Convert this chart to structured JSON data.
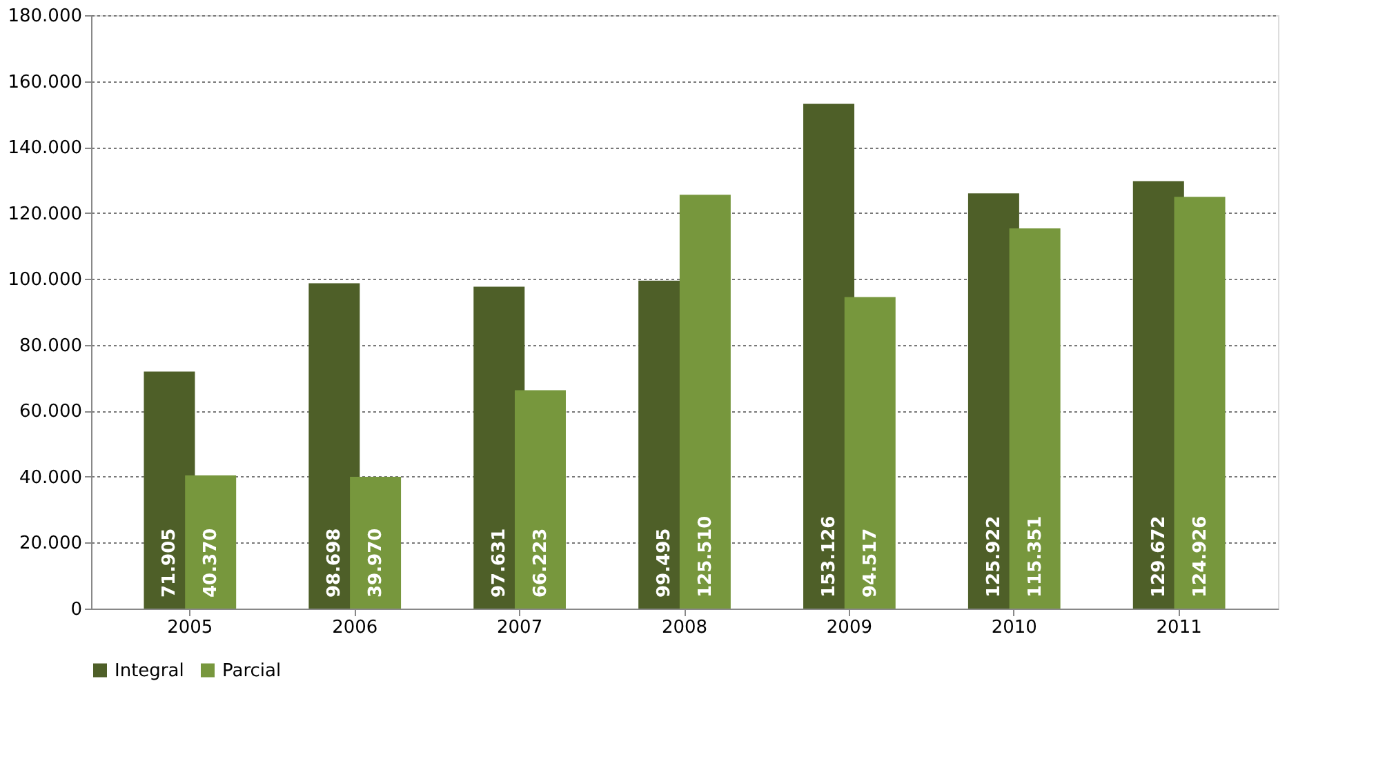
{
  "chart_data": {
    "type": "bar",
    "categories": [
      "2005",
      "2006",
      "2007",
      "2008",
      "2009",
      "2010",
      "2011"
    ],
    "series": [
      {
        "name": "Integral",
        "color": "#4e5f28",
        "values": [
          71905,
          98698,
          97631,
          99495,
          153126,
          125922,
          129672
        ],
        "value_labels": [
          "71.905",
          "98.698",
          "97.631",
          "99.495",
          "153.126",
          "125.922",
          "129.672"
        ]
      },
      {
        "name": "Parcial",
        "color": "#77973d",
        "values": [
          40370,
          39970,
          66223,
          125510,
          94517,
          115351,
          124926
        ],
        "value_labels": [
          "40.370",
          "39.970",
          "66.223",
          "125.510",
          "94.517",
          "115.351",
          "124.926"
        ]
      }
    ],
    "ylim": [
      0,
      180000
    ],
    "yticks": [
      0,
      {
        "value": 20000,
        "label": "20.000"
      },
      {
        "value": 40000,
        "label": "40.000"
      },
      {
        "value": 60000,
        "label": "60.000"
      },
      {
        "value": 80000,
        "label": "80.000"
      },
      {
        "value": 100000,
        "label": "100.000"
      },
      {
        "value": 120000,
        "label": "120.000"
      },
      {
        "value": 140000,
        "label": "140.000"
      },
      {
        "value": 160000,
        "label": "160.000"
      },
      {
        "value": 180000,
        "label": "180.000"
      }
    ],
    "grid": "y",
    "legend": "bottom"
  }
}
